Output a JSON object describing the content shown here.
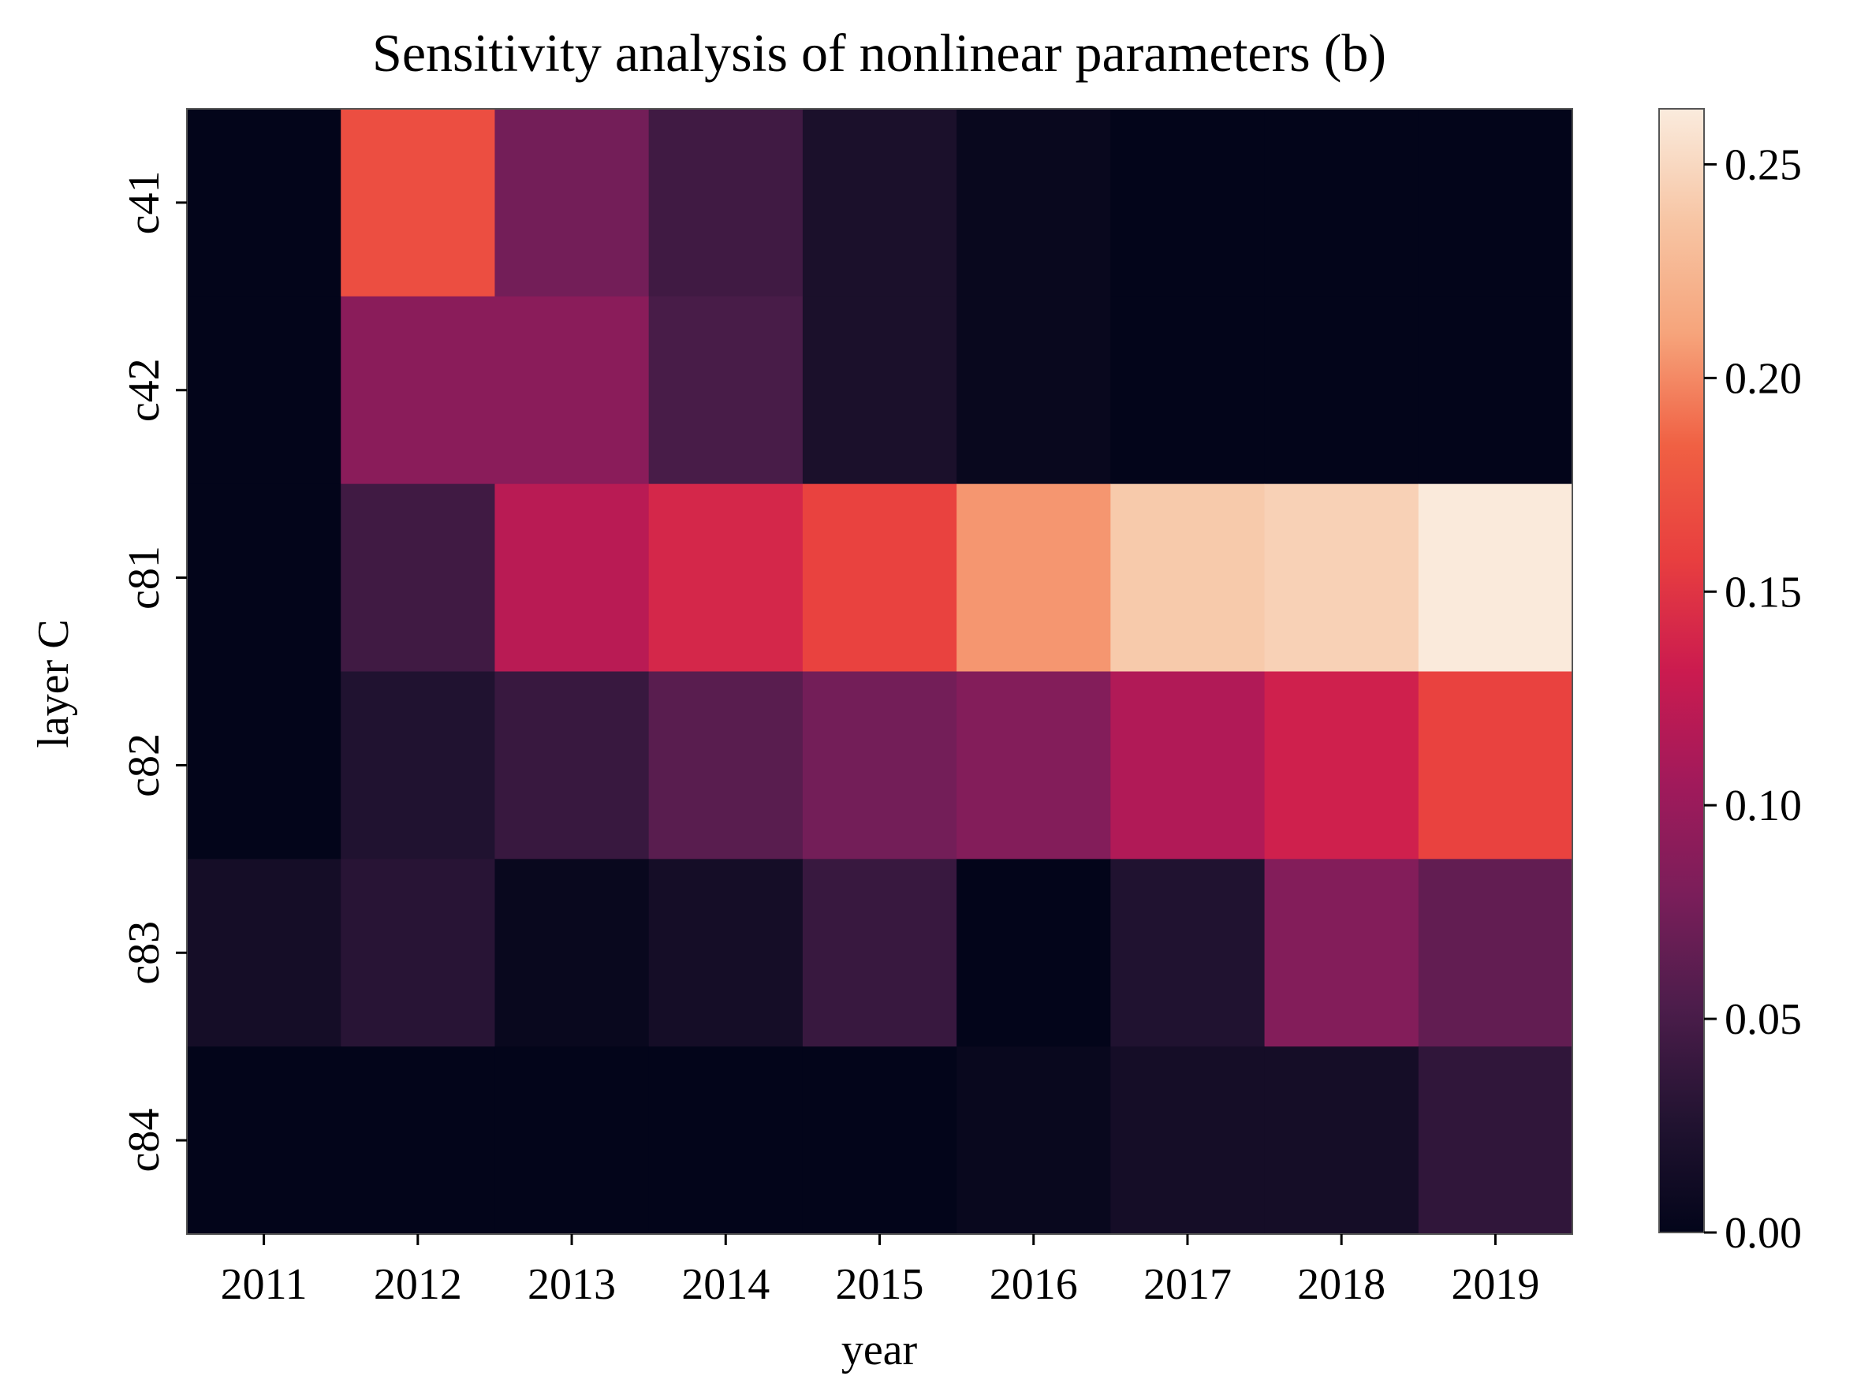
{
  "chart_data": {
    "type": "heatmap",
    "title": "Sensitivity analysis of nonlinear parameters (b)",
    "xlabel": "year",
    "ylabel": "layer C",
    "x": [
      "2011",
      "2012",
      "2013",
      "2014",
      "2015",
      "2016",
      "2017",
      "2018",
      "2019"
    ],
    "y": [
      "c41",
      "c42",
      "c81",
      "c82",
      "c83",
      "c84"
    ],
    "values": [
      [
        0.0,
        0.17,
        0.075,
        0.045,
        0.02,
        0.005,
        0.0,
        0.0,
        0.0
      ],
      [
        0.0,
        0.09,
        0.09,
        0.05,
        0.02,
        0.005,
        0.0,
        0.0,
        0.0
      ],
      [
        0.0,
        0.045,
        0.12,
        0.14,
        0.16,
        0.205,
        0.24,
        0.245,
        0.262
      ],
      [
        0.0,
        0.025,
        0.04,
        0.06,
        0.075,
        0.085,
        0.115,
        0.135,
        0.16
      ],
      [
        0.015,
        0.03,
        0.005,
        0.015,
        0.04,
        0.0,
        0.025,
        0.085,
        0.065
      ],
      [
        0.0,
        0.0,
        0.0,
        0.0,
        0.0,
        0.005,
        0.015,
        0.015,
        0.035
      ]
    ],
    "colorbar": {
      "min": 0.0,
      "max": 0.263,
      "ticks": [
        "0.00",
        "0.05",
        "0.10",
        "0.15",
        "0.20",
        "0.25"
      ],
      "tick_values": [
        0.0,
        0.05,
        0.1,
        0.15,
        0.2,
        0.25
      ]
    },
    "colormap": "rocket",
    "colormap_stops": [
      "#03051a",
      "#221331",
      "#4c1d4b",
      "#7a1e5a",
      "#a11a5b",
      "#cb1b4f",
      "#e83f3f",
      "#f06043",
      "#f6a47b",
      "#f7c5a4",
      "#faebdd"
    ],
    "grid": false,
    "legend_placement": "right"
  }
}
